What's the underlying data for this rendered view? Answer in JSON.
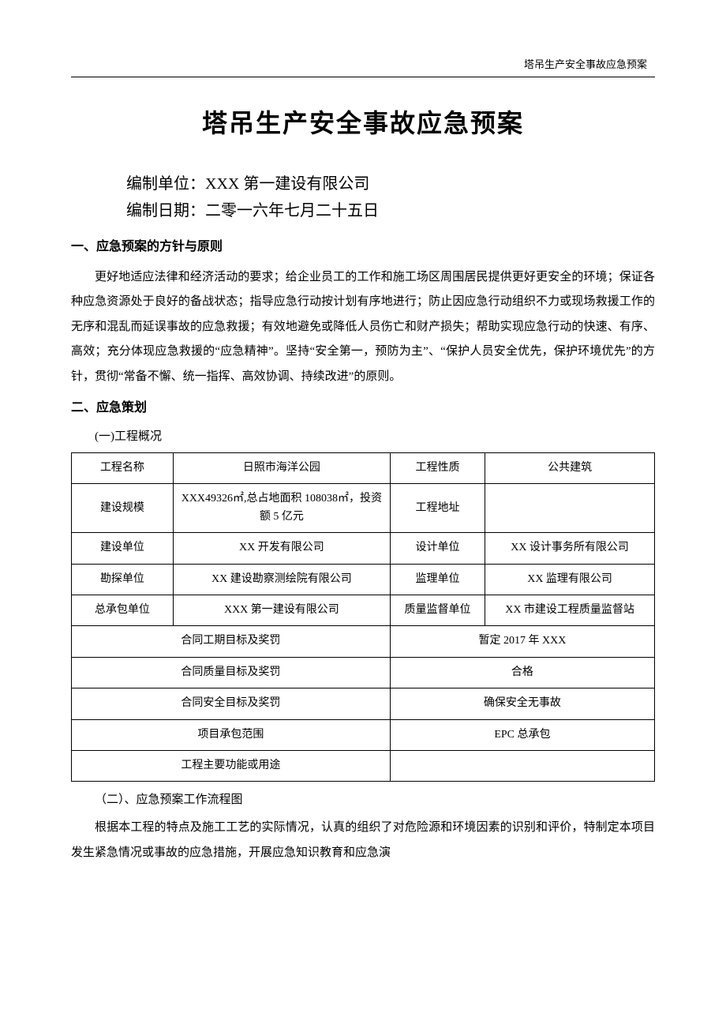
{
  "header": {
    "running_title": "塔吊生产安全事故应急预案"
  },
  "title": "塔吊生产安全事故应急预案",
  "meta": {
    "unit_label": "编制单位：",
    "unit_value": "XXX 第一建设有限公司",
    "date_label": "编制日期：",
    "date_value": "二零一六年七月二十五日"
  },
  "section1": {
    "heading": "一、应急预案的方针与原则",
    "para": "更好地适应法律和经济活动的要求；给企业员工的工作和施工场区周围居民提供更好更安全的环境；保证各种应急资源处于良好的备战状态；指导应急行动按计划有序地进行；防止因应急行动组织不力或现场救援工作的无序和混乱而延误事故的应急救援；有效地避免或降低人员伤亡和财产损失；帮助实现应急行动的快速、有序、高效；充分体现应急救援的“应急精神”。坚持“安全第一，预防为主”、“保护人员安全优先，保护环境优先”的方针，贯彻“常备不懈、统一指挥、高效协调、持续改进”的原则。"
  },
  "section2": {
    "heading": "二、应急策划",
    "sub1": "(一)工程概况",
    "table": {
      "r1c1": "工程名称",
      "r1c2": "日照市海洋公园",
      "r1c3": "工程性质",
      "r1c4": "公共建筑",
      "r2c1": "建设规模",
      "r2c2": "XXX49326㎡,总占地面积 108038㎡，投资额 5 亿元",
      "r2c3": "工程地址",
      "r2c4": "",
      "r3c1": "建设单位",
      "r3c2": "XX 开发有限公司",
      "r3c3": "设计单位",
      "r3c4": "XX 设计事务所有限公司",
      "r4c1": "勘探单位",
      "r4c2": "XX 建设勘察测绘院有限公司",
      "r4c3": "监理单位",
      "r4c4": "XX 监理有限公司",
      "r5c1": "总承包单位",
      "r5c2": "XXX 第一建设有限公司",
      "r5c3": "质量监督单位",
      "r5c4": "XX 市建设工程质量监督站",
      "r6c1": "合同工期目标及奖罚",
      "r6c2": "暂定 2017 年 XXX",
      "r7c1": "合同质量目标及奖罚",
      "r7c2": "合格",
      "r8c1": "合同安全目标及奖罚",
      "r8c2": "确保安全无事故",
      "r9c1": "项目承包范围",
      "r9c2": "EPC 总承包",
      "r10c1": "工程主要功能或用途",
      "r10c2": ""
    },
    "sub2": "（二）、应急预案工作流程图",
    "para2": "根据本工程的特点及施工工艺的实际情况，认真的组织了对危险源和环境因素的识别和评价，特制定本项目发生紧急情况或事故的应急措施，开展应急知识教育和应急演"
  },
  "styles": {
    "background_color": "#ffffff",
    "text_color": "#000000",
    "border_color": "#000000",
    "body_fontsize": 15,
    "title_fontsize": 32,
    "meta_fontsize": 20,
    "table_fontsize": 14
  }
}
